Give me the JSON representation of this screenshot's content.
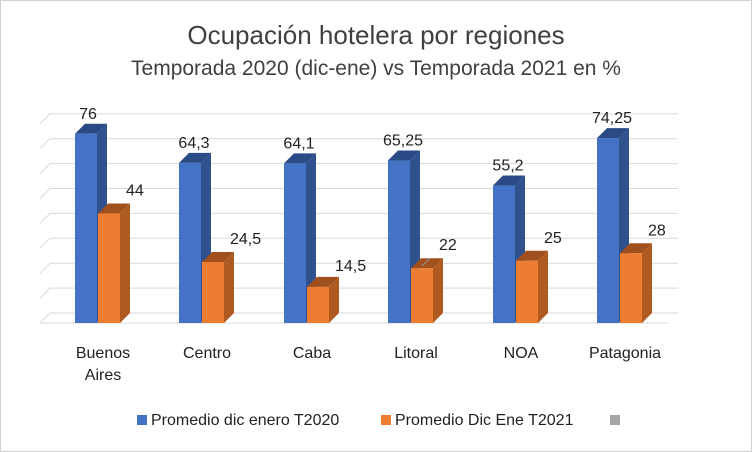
{
  "chart_data": {
    "type": "bar",
    "title": "Ocupación hotelera por regiones",
    "subtitle": "Temporada 2020 (dic-ene) vs Temporada 2021 en %",
    "categories": [
      "Buenos Aires",
      "Centro",
      "Caba",
      "Litoral",
      "NOA",
      "Patagonia"
    ],
    "series": [
      {
        "name": "Promedio dic enero T2020",
        "values": [
          76,
          64.3,
          64.1,
          65.25,
          55.2,
          74.25
        ],
        "labels": [
          "76",
          "64,3",
          "64,1",
          "65,25",
          "55,2",
          "74,25"
        ]
      },
      {
        "name": "Promedio Dic Ene T2021",
        "values": [
          44,
          24.5,
          14.5,
          22,
          25,
          28
        ],
        "labels": [
          "44",
          "24,5",
          "14,5",
          "22",
          "25",
          "28"
        ]
      }
    ],
    "ylim": [
      0,
      80
    ],
    "grid": true,
    "legend": "bottom",
    "colors": {
      "s0_front": "#4472c4",
      "s0_side": "#2f528f",
      "s0_top": "#2a4a85",
      "s1_front": "#ed7d31",
      "s1_side": "#ae5a21",
      "s1_top": "#a0501c",
      "grid": "#d9d9d9",
      "third_legend": "#a5a5a5"
    }
  }
}
